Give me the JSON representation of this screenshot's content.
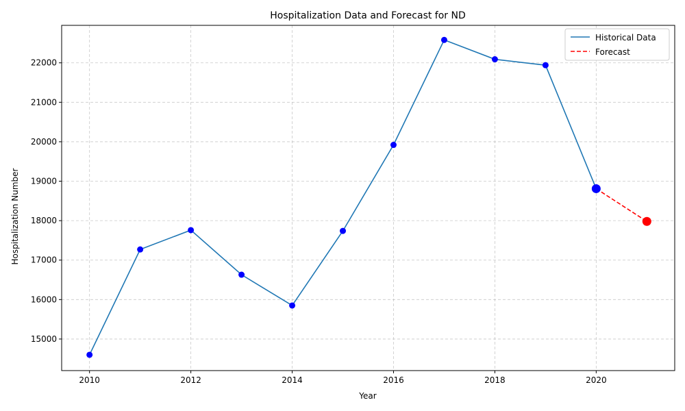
{
  "chart_data": {
    "type": "line",
    "title": "Hospitalization Data and Forecast for ND",
    "xlabel": "Year",
    "ylabel": "Hospitalization Number",
    "xlim": [
      2009.45,
      2021.55
    ],
    "ylim": [
      14200,
      22950
    ],
    "x_ticks": [
      2010,
      2012,
      2014,
      2016,
      2018,
      2020
    ],
    "y_ticks": [
      15000,
      16000,
      17000,
      18000,
      19000,
      20000,
      21000,
      22000
    ],
    "grid": true,
    "legend_position": "top-right",
    "series": [
      {
        "name": "Historical Data",
        "style": "solid",
        "color": "#1f77b4",
        "marker_color": "#0000ff",
        "x": [
          2010,
          2011,
          2012,
          2013,
          2014,
          2015,
          2016,
          2017,
          2018,
          2019,
          2020
        ],
        "y": [
          14600,
          17270,
          17760,
          16630,
          15850,
          17740,
          19920,
          22580,
          22090,
          21940,
          18810
        ]
      },
      {
        "name": "Forecast",
        "style": "dashed",
        "color": "#ff0000",
        "marker_color": "#ff0000",
        "x": [
          2020,
          2021
        ],
        "y": [
          18810,
          17980
        ]
      }
    ]
  }
}
